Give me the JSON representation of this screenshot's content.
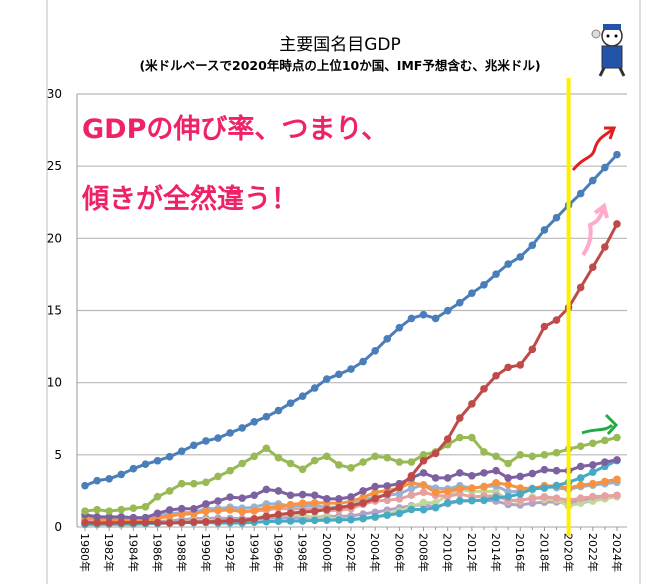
{
  "chart_data": {
    "type": "line",
    "title": "主要国名目GDP",
    "subtitle": "(米ドルベースで2020年時点の上位10か国、IMF予想含む、兆米ドル)",
    "xlabel": "",
    "ylabel": "",
    "ylim": [
      0,
      30
    ],
    "yticks": [
      0,
      5,
      10,
      15,
      20,
      25,
      30
    ],
    "grid": true,
    "legend": "none",
    "x": [
      "1980年",
      "1981年",
      "1982年",
      "1983年",
      "1984年",
      "1985年",
      "1986年",
      "1987年",
      "1988年",
      "1989年",
      "1990年",
      "1991年",
      "1992年",
      "1993年",
      "1994年",
      "1995年",
      "1996年",
      "1997年",
      "1998年",
      "1999年",
      "2000年",
      "2001年",
      "2002年",
      "2003年",
      "2004年",
      "2005年",
      "2006年",
      "2007年",
      "2008年",
      "2009年",
      "2010年",
      "2011年",
      "2012年",
      "2013年",
      "2014年",
      "2015年",
      "2016年",
      "2017年",
      "2018年",
      "2019年",
      "2020年",
      "2021年",
      "2022年",
      "2023年",
      "2024年"
    ],
    "xtick_labels": [
      "1980年",
      "1982年",
      "1984年",
      "1986年",
      "1988年",
      "1990年",
      "1992年",
      "1994年",
      "1996年",
      "1998年",
      "2000年",
      "2002年",
      "2004年",
      "2006年",
      "2008年",
      "2010年",
      "2012年",
      "2014年",
      "2016年",
      "2018年",
      "2020年",
      "2022年",
      "2024年"
    ],
    "series": [
      {
        "color": "#4a7ebb",
        "values": [
          2.86,
          3.21,
          3.34,
          3.64,
          4.04,
          4.35,
          4.59,
          4.87,
          5.25,
          5.66,
          5.96,
          6.16,
          6.52,
          6.86,
          7.29,
          7.64,
          8.07,
          8.58,
          9.06,
          9.63,
          10.25,
          10.58,
          10.94,
          11.46,
          12.21,
          13.04,
          13.81,
          14.45,
          14.71,
          14.45,
          14.99,
          15.54,
          16.2,
          16.78,
          17.52,
          18.22,
          18.71,
          19.52,
          20.58,
          21.43,
          22.3,
          23.1,
          24.0,
          24.9,
          25.8
        ]
      },
      {
        "color": "#be4b48",
        "values": [
          0.3,
          0.29,
          0.28,
          0.3,
          0.31,
          0.31,
          0.3,
          0.27,
          0.31,
          0.35,
          0.36,
          0.38,
          0.43,
          0.44,
          0.56,
          0.73,
          0.86,
          0.96,
          1.03,
          1.09,
          1.21,
          1.34,
          1.47,
          1.66,
          1.96,
          2.29,
          2.75,
          3.55,
          4.59,
          5.1,
          6.09,
          7.55,
          8.53,
          9.57,
          10.48,
          11.06,
          11.23,
          12.31,
          13.89,
          14.34,
          15.2,
          16.6,
          18.0,
          19.4,
          21.0
        ]
      },
      {
        "color": "#98b954",
        "values": [
          1.1,
          1.2,
          1.1,
          1.2,
          1.3,
          1.4,
          2.1,
          2.5,
          3.0,
          3.0,
          3.1,
          3.5,
          3.9,
          4.4,
          4.9,
          5.45,
          4.8,
          4.4,
          4.0,
          4.6,
          4.9,
          4.3,
          4.1,
          4.5,
          4.9,
          4.8,
          4.5,
          4.5,
          5.0,
          5.2,
          5.7,
          6.2,
          6.2,
          5.2,
          4.9,
          4.4,
          5.0,
          4.9,
          5.0,
          5.15,
          5.4,
          5.6,
          5.8,
          6.0,
          6.2
        ]
      },
      {
        "color": "#7d60a0",
        "values": [
          0.85,
          0.7,
          0.7,
          0.7,
          0.65,
          0.65,
          0.95,
          1.18,
          1.27,
          1.26,
          1.6,
          1.8,
          2.07,
          2.0,
          2.2,
          2.6,
          2.5,
          2.2,
          2.25,
          2.2,
          1.95,
          1.95,
          2.08,
          2.5,
          2.8,
          2.85,
          3.0,
          3.4,
          3.75,
          3.4,
          3.4,
          3.75,
          3.55,
          3.75,
          3.9,
          3.4,
          3.5,
          3.7,
          3.97,
          3.9,
          3.9,
          4.2,
          4.3,
          4.5,
          4.65
        ]
      },
      {
        "color": "#46aac5",
        "values": [
          0.19,
          0.2,
          0.2,
          0.22,
          0.22,
          0.24,
          0.25,
          0.28,
          0.3,
          0.3,
          0.32,
          0.27,
          0.29,
          0.28,
          0.33,
          0.37,
          0.4,
          0.42,
          0.42,
          0.46,
          0.47,
          0.49,
          0.51,
          0.6,
          0.7,
          0.82,
          0.94,
          1.22,
          1.2,
          1.34,
          1.68,
          1.82,
          1.83,
          1.86,
          2.04,
          2.1,
          2.29,
          2.65,
          2.7,
          2.87,
          3.1,
          3.4,
          3.8,
          4.2,
          4.6
        ]
      },
      {
        "color": "#f69240",
        "values": [
          0.6,
          0.55,
          0.5,
          0.48,
          0.46,
          0.49,
          0.6,
          0.75,
          0.9,
          0.93,
          1.09,
          1.14,
          1.18,
          1.06,
          1.14,
          1.33,
          1.4,
          1.55,
          1.65,
          1.68,
          1.66,
          1.64,
          1.77,
          2.05,
          2.4,
          2.52,
          2.7,
          3.07,
          2.9,
          2.4,
          2.48,
          2.66,
          2.7,
          2.78,
          3.06,
          2.93,
          2.7,
          2.66,
          2.86,
          2.83,
          2.7,
          2.9,
          3.0,
          3.15,
          3.3
        ]
      },
      {
        "color": "#95b3d7",
        "values": [
          0.7,
          0.62,
          0.6,
          0.57,
          0.53,
          0.55,
          0.77,
          0.92,
          1.0,
          1.0,
          1.27,
          1.27,
          1.37,
          1.3,
          1.37,
          1.6,
          1.6,
          1.45,
          1.5,
          1.49,
          1.36,
          1.38,
          1.5,
          1.84,
          2.1,
          2.2,
          2.3,
          2.66,
          2.92,
          2.69,
          2.64,
          2.86,
          2.68,
          2.81,
          2.85,
          2.44,
          2.47,
          2.59,
          2.79,
          2.72,
          2.6,
          2.8,
          2.9,
          3.0,
          3.1
        ]
      },
      {
        "color": "#e6a0a0",
        "values": [
          0.48,
          0.43,
          0.43,
          0.44,
          0.44,
          0.45,
          0.64,
          0.8,
          0.87,
          0.92,
          1.18,
          1.24,
          1.32,
          1.06,
          1.1,
          1.17,
          1.31,
          1.24,
          1.27,
          1.25,
          1.14,
          1.16,
          1.27,
          1.57,
          1.8,
          1.85,
          1.94,
          2.2,
          2.4,
          2.19,
          2.13,
          2.29,
          2.09,
          2.14,
          2.16,
          1.83,
          1.87,
          1.96,
          2.09,
          2.0,
          1.85,
          2.0,
          2.1,
          2.15,
          2.2
        ]
      },
      {
        "color": "#c3d69b",
        "values": [
          0.15,
          0.17,
          0.19,
          0.15,
          0.15,
          0.22,
          0.26,
          0.29,
          0.33,
          0.44,
          0.46,
          0.4,
          0.39,
          0.44,
          0.56,
          0.77,
          0.85,
          0.88,
          0.86,
          0.6,
          0.66,
          0.56,
          0.51,
          0.56,
          0.67,
          0.89,
          1.1,
          1.4,
          1.7,
          1.67,
          2.2,
          2.6,
          2.47,
          2.47,
          2.46,
          1.8,
          1.8,
          2.06,
          1.92,
          1.88,
          1.45,
          1.65,
          1.8,
          1.95,
          2.1
        ]
      },
      {
        "color": "#b3a2c7",
        "values": [
          0.27,
          0.3,
          0.31,
          0.34,
          0.35,
          0.36,
          0.37,
          0.43,
          0.5,
          0.57,
          0.6,
          0.61,
          0.59,
          0.58,
          0.58,
          0.6,
          0.63,
          0.65,
          0.63,
          0.67,
          0.74,
          0.74,
          0.76,
          0.9,
          1.02,
          1.17,
          1.32,
          1.47,
          1.55,
          1.37,
          1.62,
          1.79,
          1.83,
          1.85,
          1.8,
          1.56,
          1.53,
          1.65,
          1.72,
          1.74,
          1.64,
          1.88,
          1.98,
          2.08,
          2.18
        ]
      }
    ],
    "annotations": {
      "line1": "GDPの伸び率、つまり、",
      "line2": "傾きが全然違う！",
      "text_color": "#ee2266",
      "marker_line_year": "2020年",
      "marker_line_color": "#ffee00",
      "arrow_colors": [
        "#e02020",
        "#ffaacc",
        "#22aa44"
      ]
    }
  }
}
